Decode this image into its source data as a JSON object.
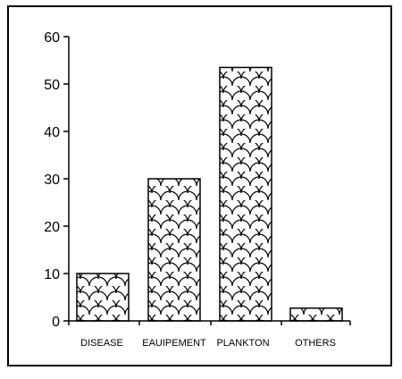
{
  "chart_data": {
    "type": "bar",
    "title": "",
    "xlabel": "",
    "ylabel": "",
    "categories": [
      "DISEASE",
      "EAUIPEMENT",
      "PLANKTON",
      "OTHERS"
    ],
    "values": [
      10,
      30,
      53.5,
      2.7
    ],
    "ylim": [
      0,
      60
    ],
    "yticks": [
      0,
      10,
      20,
      30,
      40,
      50,
      60
    ],
    "ytick_labels": [
      "0",
      "10",
      "20",
      "30",
      "40",
      "50",
      "60"
    ],
    "grid": false,
    "legend": "none",
    "bar_fill": "fish-scale hatch pattern",
    "colors": {
      "bar_stroke": "#000000",
      "background": "#ffffff",
      "axis": "#000000"
    }
  }
}
